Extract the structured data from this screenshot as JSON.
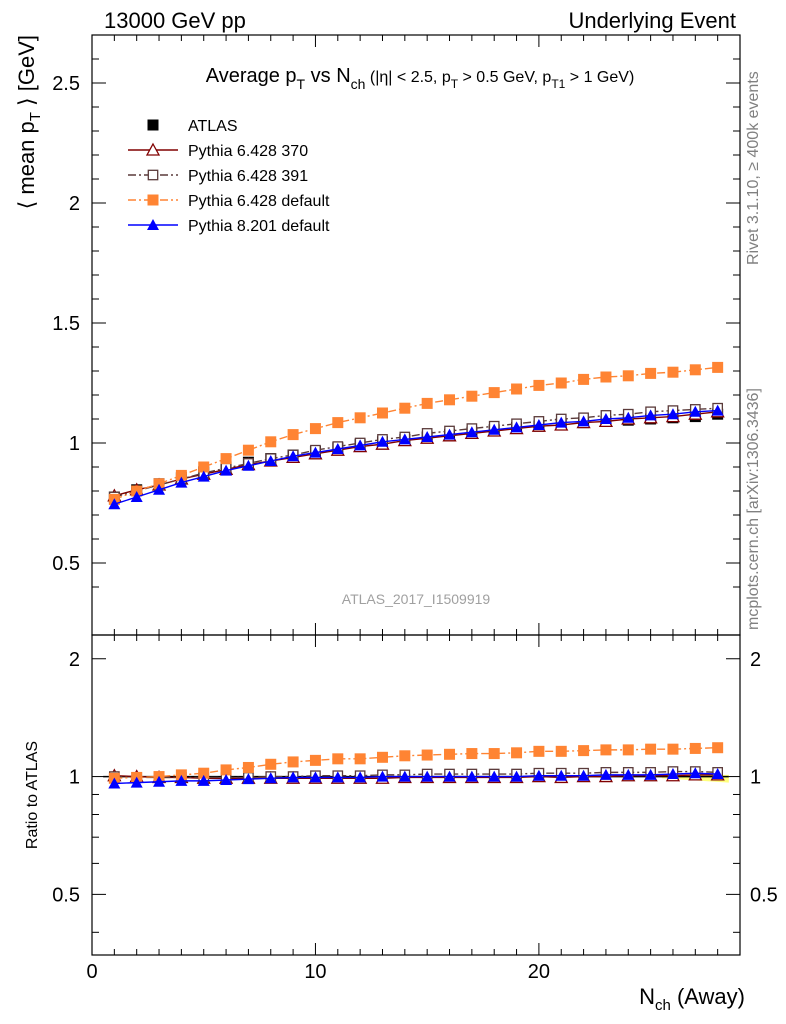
{
  "header": {
    "left": "13000 GeV pp",
    "right": "Underlying Event"
  },
  "side_labels": {
    "rivet": "Rivet 3.1.10, ≥ 400k events",
    "mcplots": "mcplots.cern.ch [arXiv:1306.3436]"
  },
  "watermark": "ATLAS_2017_I1509919",
  "chart_data": [
    {
      "type": "line",
      "title_parts": {
        "a": "Average p",
        "a_sub": "T",
        "b": " vs N",
        "b_sub": "ch",
        "c": " (|η| < 2.5, p",
        "c_sub": "T",
        "d": " > 0.5 GeV, p",
        "d_sub": "T1",
        "e": " > 1 GeV)"
      },
      "ylabel_parts": {
        "a": "⟨ mean p",
        "a_sub": "T",
        "b": " ⟩ [GeV]"
      },
      "ylim": [
        0.2,
        2.7
      ],
      "xlim": [
        0,
        29
      ],
      "ytick_labels": [
        "0.5",
        "1",
        "1.5",
        "2",
        "2.5"
      ],
      "yticks": [
        0.5,
        1,
        1.5,
        2,
        2.5
      ],
      "legend_position": "top-left",
      "x": [
        1,
        2,
        3,
        4,
        5,
        6,
        7,
        8,
        9,
        10,
        11,
        12,
        13,
        14,
        15,
        16,
        17,
        18,
        19,
        20,
        21,
        22,
        23,
        24,
        25,
        26,
        27,
        28
      ],
      "series": [
        {
          "name": "ATLAS",
          "color": "#000000",
          "marker": "square-filled",
          "line": "none",
          "values": [
            0.775,
            0.805,
            0.83,
            0.855,
            0.88,
            0.9,
            0.92,
            0.935,
            0.95,
            0.965,
            0.98,
            0.995,
            1.005,
            1.015,
            1.025,
            1.035,
            1.045,
            1.055,
            1.065,
            1.07,
            1.08,
            1.085,
            1.09,
            1.095,
            1.1,
            1.105,
            1.11,
            1.12
          ]
        },
        {
          "name": "Pythia 6.428 370",
          "color": "#800000",
          "marker": "triangle-open",
          "line": "solid",
          "values": [
            0.78,
            0.805,
            0.825,
            0.85,
            0.87,
            0.89,
            0.91,
            0.925,
            0.94,
            0.955,
            0.97,
            0.985,
            0.995,
            1.01,
            1.02,
            1.03,
            1.04,
            1.05,
            1.06,
            1.07,
            1.075,
            1.085,
            1.09,
            1.1,
            1.105,
            1.11,
            1.12,
            1.13
          ]
        },
        {
          "name": "Pythia 6.428 391",
          "color": "#5a3a3a",
          "marker": "square-open",
          "line": "dashdot",
          "values": [
            0.775,
            0.8,
            0.825,
            0.85,
            0.875,
            0.895,
            0.915,
            0.935,
            0.95,
            0.97,
            0.985,
            1.0,
            1.015,
            1.025,
            1.04,
            1.05,
            1.06,
            1.07,
            1.08,
            1.09,
            1.1,
            1.105,
            1.115,
            1.12,
            1.13,
            1.135,
            1.14,
            1.145
          ]
        },
        {
          "name": "Pythia 6.428 default",
          "color": "#ff8433",
          "marker": "square-filled",
          "line": "dashdot",
          "values": [
            0.765,
            0.8,
            0.83,
            0.865,
            0.9,
            0.935,
            0.97,
            1.005,
            1.035,
            1.06,
            1.085,
            1.105,
            1.125,
            1.145,
            1.165,
            1.18,
            1.195,
            1.21,
            1.225,
            1.24,
            1.25,
            1.265,
            1.275,
            1.28,
            1.29,
            1.295,
            1.305,
            1.315
          ]
        },
        {
          "name": "Pythia 8.201 default",
          "color": "#0000ff",
          "marker": "triangle-filled",
          "line": "solid",
          "values": [
            0.745,
            0.775,
            0.805,
            0.835,
            0.86,
            0.885,
            0.905,
            0.925,
            0.945,
            0.96,
            0.975,
            0.99,
            1.005,
            1.015,
            1.025,
            1.035,
            1.045,
            1.055,
            1.065,
            1.075,
            1.085,
            1.09,
            1.1,
            1.105,
            1.115,
            1.12,
            1.13,
            1.135
          ]
        }
      ]
    },
    {
      "type": "line",
      "ylabel": "Ratio to ATLAS",
      "xlabel_parts": {
        "a": "N",
        "a_sub": "ch",
        "b": " (Away)"
      },
      "ylim": [
        0.35,
        2.3
      ],
      "xlim": [
        0,
        29
      ],
      "ytick_labels": [
        "0.5",
        "1",
        "2"
      ],
      "yticks": [
        0.5,
        1,
        2
      ],
      "xtick_labels": [
        "0",
        "10",
        "20"
      ],
      "xticks": [
        0,
        10,
        20
      ],
      "x": [
        1,
        2,
        3,
        4,
        5,
        6,
        7,
        8,
        9,
        10,
        11,
        12,
        13,
        14,
        15,
        16,
        17,
        18,
        19,
        20,
        21,
        22,
        23,
        24,
        25,
        26,
        27,
        28
      ],
      "band_color": "#ffff66",
      "series": [
        {
          "name": "Pythia 6.428 370",
          "color": "#800000",
          "marker": "triangle-open",
          "line": "solid",
          "values": [
            1.005,
            1.0,
            0.995,
            0.995,
            0.99,
            0.99,
            0.99,
            0.99,
            0.99,
            0.99,
            0.99,
            0.99,
            0.99,
            0.995,
            0.995,
            0.995,
            0.995,
            0.995,
            0.995,
            1.0,
            0.995,
            1.0,
            1.0,
            1.005,
            1.005,
            1.005,
            1.01,
            1.01
          ]
        },
        {
          "name": "Pythia 6.428 391",
          "color": "#5a3a3a",
          "marker": "square-open",
          "line": "dashdot",
          "values": [
            1.0,
            0.995,
            0.995,
            0.995,
            0.995,
            0.995,
            0.995,
            1.0,
            1.0,
            1.005,
            1.005,
            1.005,
            1.01,
            1.01,
            1.015,
            1.015,
            1.015,
            1.015,
            1.015,
            1.02,
            1.02,
            1.02,
            1.025,
            1.025,
            1.025,
            1.03,
            1.03,
            1.025
          ]
        },
        {
          "name": "Pythia 6.428 default",
          "color": "#ff8433",
          "marker": "square-filled",
          "line": "dashdot",
          "values": [
            0.99,
            0.995,
            1.0,
            1.01,
            1.02,
            1.04,
            1.055,
            1.075,
            1.09,
            1.1,
            1.11,
            1.11,
            1.12,
            1.13,
            1.135,
            1.14,
            1.145,
            1.145,
            1.15,
            1.16,
            1.16,
            1.165,
            1.17,
            1.17,
            1.175,
            1.175,
            1.18,
            1.185
          ]
        },
        {
          "name": "Pythia 8.201 default",
          "color": "#0000ff",
          "marker": "triangle-filled",
          "line": "solid",
          "values": [
            0.96,
            0.965,
            0.97,
            0.975,
            0.975,
            0.98,
            0.985,
            0.99,
            0.995,
            0.995,
            0.995,
            0.995,
            1.0,
            1.0,
            1.0,
            1.0,
            1.0,
            1.0,
            1.0,
            1.005,
            1.005,
            1.005,
            1.01,
            1.01,
            1.01,
            1.015,
            1.02,
            1.015
          ]
        }
      ]
    }
  ]
}
